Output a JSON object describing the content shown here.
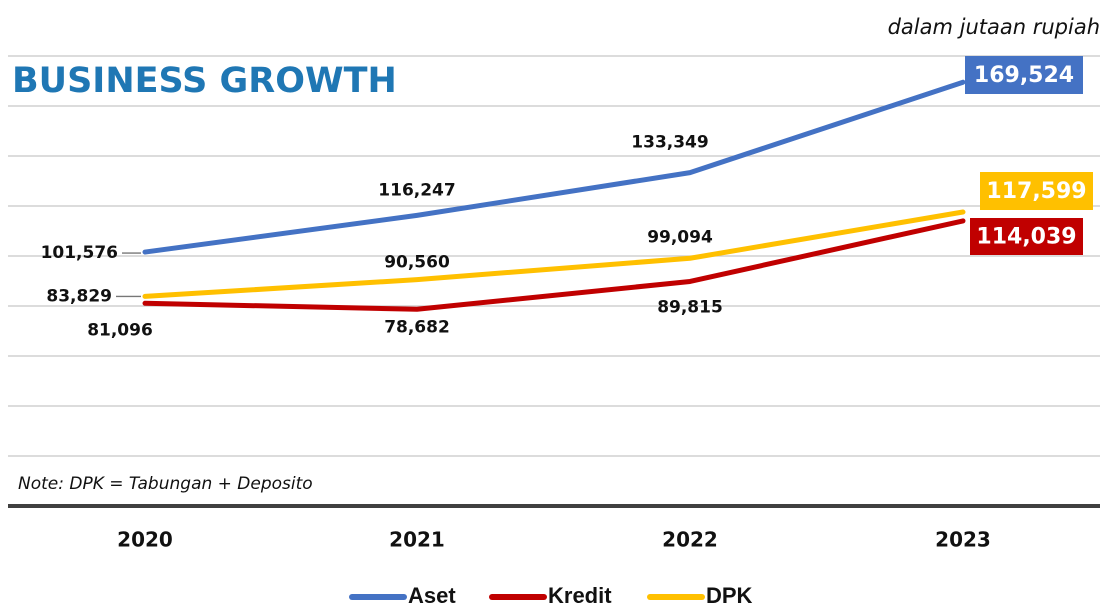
{
  "chart_data": {
    "type": "line",
    "title": "BUSINESS GROWTH",
    "subtitle": "dalam jutaan rupiah",
    "note": "Note: DPK = Tabungan + Deposito",
    "categories": [
      "2020",
      "2021",
      "2022",
      "2023"
    ],
    "series": [
      {
        "name": "Aset",
        "color": "#4472c4",
        "values": [
          101576,
          116247,
          133349,
          169524
        ],
        "value_labels": [
          "101,576",
          "116,247",
          "133,349",
          "169,524"
        ]
      },
      {
        "name": "Kredit",
        "color": "#c00000",
        "values": [
          81096,
          78682,
          89815,
          114039
        ],
        "value_labels": [
          "81,096",
          "78,682",
          "89,815",
          "114,039"
        ]
      },
      {
        "name": "DPK",
        "color": "#ffc000",
        "values": [
          83829,
          90560,
          99094,
          117599
        ],
        "value_labels": [
          "83,829",
          "90,560",
          "99,094",
          "117,599"
        ]
      }
    ],
    "ylim": [
      0,
      180000
    ],
    "yticks": [
      0,
      20000,
      40000,
      60000,
      80000,
      100000,
      120000,
      140000,
      160000,
      180000
    ],
    "grid": true,
    "legend": "bottom"
  }
}
